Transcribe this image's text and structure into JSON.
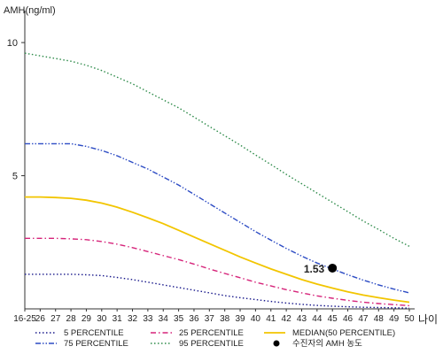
{
  "chart_data": {
    "type": "line",
    "ylabel": "AMH(ng/ml)",
    "xlabel": "나이",
    "ylim": [
      0,
      11
    ],
    "yticks": [
      5,
      10
    ],
    "categories": [
      "16-25",
      "26",
      "27",
      "28",
      "29",
      "30",
      "31",
      "32",
      "33",
      "34",
      "35",
      "36",
      "37",
      "38",
      "39",
      "40",
      "41",
      "42",
      "43",
      "44",
      "45",
      "46",
      "47",
      "48",
      "49",
      "50"
    ],
    "series": [
      {
        "name": "5 PERCENTILE",
        "color": "#1a1a8c",
        "dash": "dot",
        "values": [
          1.3,
          1.3,
          1.3,
          1.3,
          1.28,
          1.25,
          1.18,
          1.1,
          1.0,
          0.9,
          0.8,
          0.7,
          0.6,
          0.5,
          0.42,
          0.35,
          0.28,
          0.22,
          0.17,
          0.13,
          0.1,
          0.08,
          0.06,
          0.05,
          0.04,
          0.03
        ]
      },
      {
        "name": "25 PERCENTILE",
        "color": "#d6247a",
        "dash": "dashdot",
        "values": [
          2.65,
          2.65,
          2.65,
          2.63,
          2.6,
          2.53,
          2.43,
          2.3,
          2.15,
          2.0,
          1.85,
          1.68,
          1.5,
          1.33,
          1.17,
          1.0,
          0.86,
          0.72,
          0.6,
          0.49,
          0.4,
          0.32,
          0.25,
          0.2,
          0.16,
          0.12
        ]
      },
      {
        "name": "MEDIAN(50 PERCENTILE)",
        "color": "#f2c500",
        "dash": "solid",
        "values": [
          4.2,
          4.2,
          4.18,
          4.15,
          4.08,
          3.97,
          3.82,
          3.63,
          3.42,
          3.2,
          2.95,
          2.7,
          2.45,
          2.2,
          1.95,
          1.72,
          1.5,
          1.3,
          1.1,
          0.93,
          0.78,
          0.64,
          0.52,
          0.42,
          0.33,
          0.25
        ]
      },
      {
        "name": "75 PERCENTILE",
        "color": "#2d4cc4",
        "dash": "dashdotdot",
        "values": [
          6.2,
          6.2,
          6.2,
          6.2,
          6.1,
          5.95,
          5.75,
          5.5,
          5.25,
          4.95,
          4.65,
          4.3,
          3.95,
          3.6,
          3.25,
          2.9,
          2.58,
          2.27,
          1.98,
          1.72,
          1.5,
          1.28,
          1.08,
          0.9,
          0.74,
          0.6
        ]
      },
      {
        "name": "95 PERCENTILE",
        "color": "#2e8b4a",
        "dash": "dot",
        "values": [
          9.6,
          9.5,
          9.4,
          9.3,
          9.15,
          8.95,
          8.7,
          8.45,
          8.15,
          7.85,
          7.55,
          7.2,
          6.85,
          6.5,
          6.15,
          5.78,
          5.42,
          5.05,
          4.7,
          4.35,
          4.0,
          3.65,
          3.3,
          2.98,
          2.65,
          2.35
        ]
      }
    ],
    "marker": {
      "name": "수진자의 AMH 농도",
      "x": "45",
      "y": 1.53,
      "label": "1.53",
      "color": "#000000"
    },
    "legend_placement": "bottom",
    "grid": false
  }
}
